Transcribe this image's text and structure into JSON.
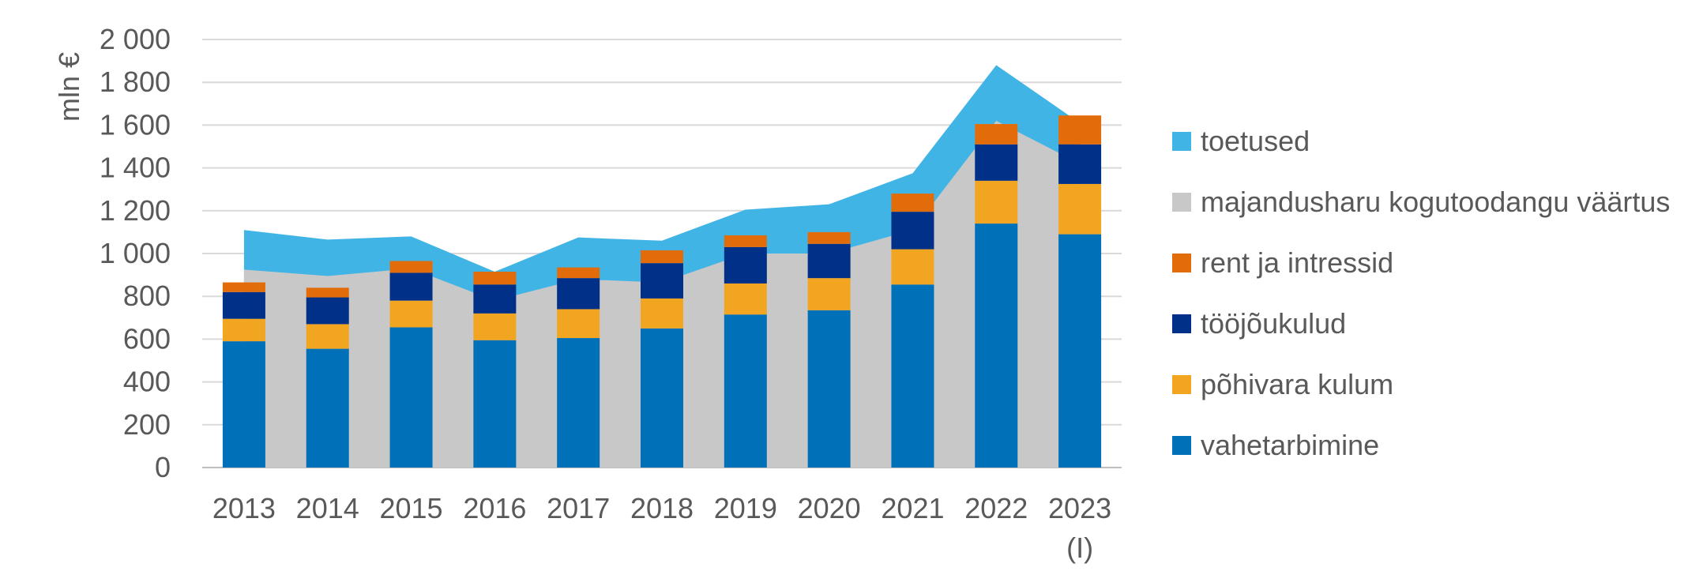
{
  "chart_data": {
    "type": "bar",
    "ylabel": "mln €",
    "xlabel": "",
    "ylim": [
      0,
      2000
    ],
    "yticks": [
      0,
      200,
      400,
      600,
      800,
      1000,
      1200,
      1400,
      1600,
      1800,
      2000
    ],
    "ytick_labels": [
      "0",
      "200",
      "400",
      "600",
      "800",
      "1 000",
      "1 200",
      "1 400",
      "1 600",
      "1 800",
      "2 000"
    ],
    "grid": true,
    "legend_position": "right",
    "categories": [
      "2013",
      "2014",
      "2015",
      "2016",
      "2017",
      "2018",
      "2019",
      "2020",
      "2021",
      "2022",
      "2023 (I)"
    ],
    "category_labels": [
      [
        "2013"
      ],
      [
        "2014"
      ],
      [
        "2015"
      ],
      [
        "2016"
      ],
      [
        "2017"
      ],
      [
        "2018"
      ],
      [
        "2019"
      ],
      [
        "2020"
      ],
      [
        "2021"
      ],
      [
        "2022"
      ],
      [
        "2023",
        "(I)"
      ]
    ],
    "stacked_bars": [
      {
        "name": "vahetarbimine",
        "color": "#0070B8",
        "values": [
          590,
          555,
          655,
          595,
          605,
          650,
          715,
          735,
          855,
          1140,
          1090
        ]
      },
      {
        "name": "põhivara kulum",
        "color": "#F2A521",
        "values": [
          105,
          115,
          125,
          125,
          135,
          140,
          145,
          150,
          165,
          200,
          235
        ]
      },
      {
        "name": "tööjõukulud",
        "color": "#003087",
        "values": [
          125,
          125,
          130,
          135,
          145,
          165,
          170,
          160,
          175,
          170,
          185
        ]
      },
      {
        "name": "rent ja intressid",
        "color": "#E36C0A",
        "values": [
          45,
          45,
          55,
          60,
          50,
          60,
          55,
          55,
          85,
          95,
          135
        ]
      }
    ],
    "areas": [
      {
        "name": "majandusharu kogutoodangu väärtus",
        "color": "#C8C8C8",
        "values": [
          925,
          895,
          930,
          780,
          880,
          865,
          1000,
          1000,
          1110,
          1620,
          1420
        ]
      },
      {
        "name": "toetused",
        "color": "#41B4E6",
        "values": [
          1110,
          1065,
          1080,
          915,
          1075,
          1060,
          1205,
          1230,
          1375,
          1880,
          1610
        ]
      }
    ],
    "legend": [
      {
        "name": "toetused",
        "color": "#41B4E6"
      },
      {
        "name": "majandusharu kogutoodangu väärtus",
        "color": "#C8C8C8"
      },
      {
        "name": "rent ja intressid",
        "color": "#E36C0A"
      },
      {
        "name": "tööjõukulud",
        "color": "#003087"
      },
      {
        "name": "põhivara kulum",
        "color": "#F2A521"
      },
      {
        "name": "vahetarbimine",
        "color": "#0070B8"
      }
    ]
  }
}
